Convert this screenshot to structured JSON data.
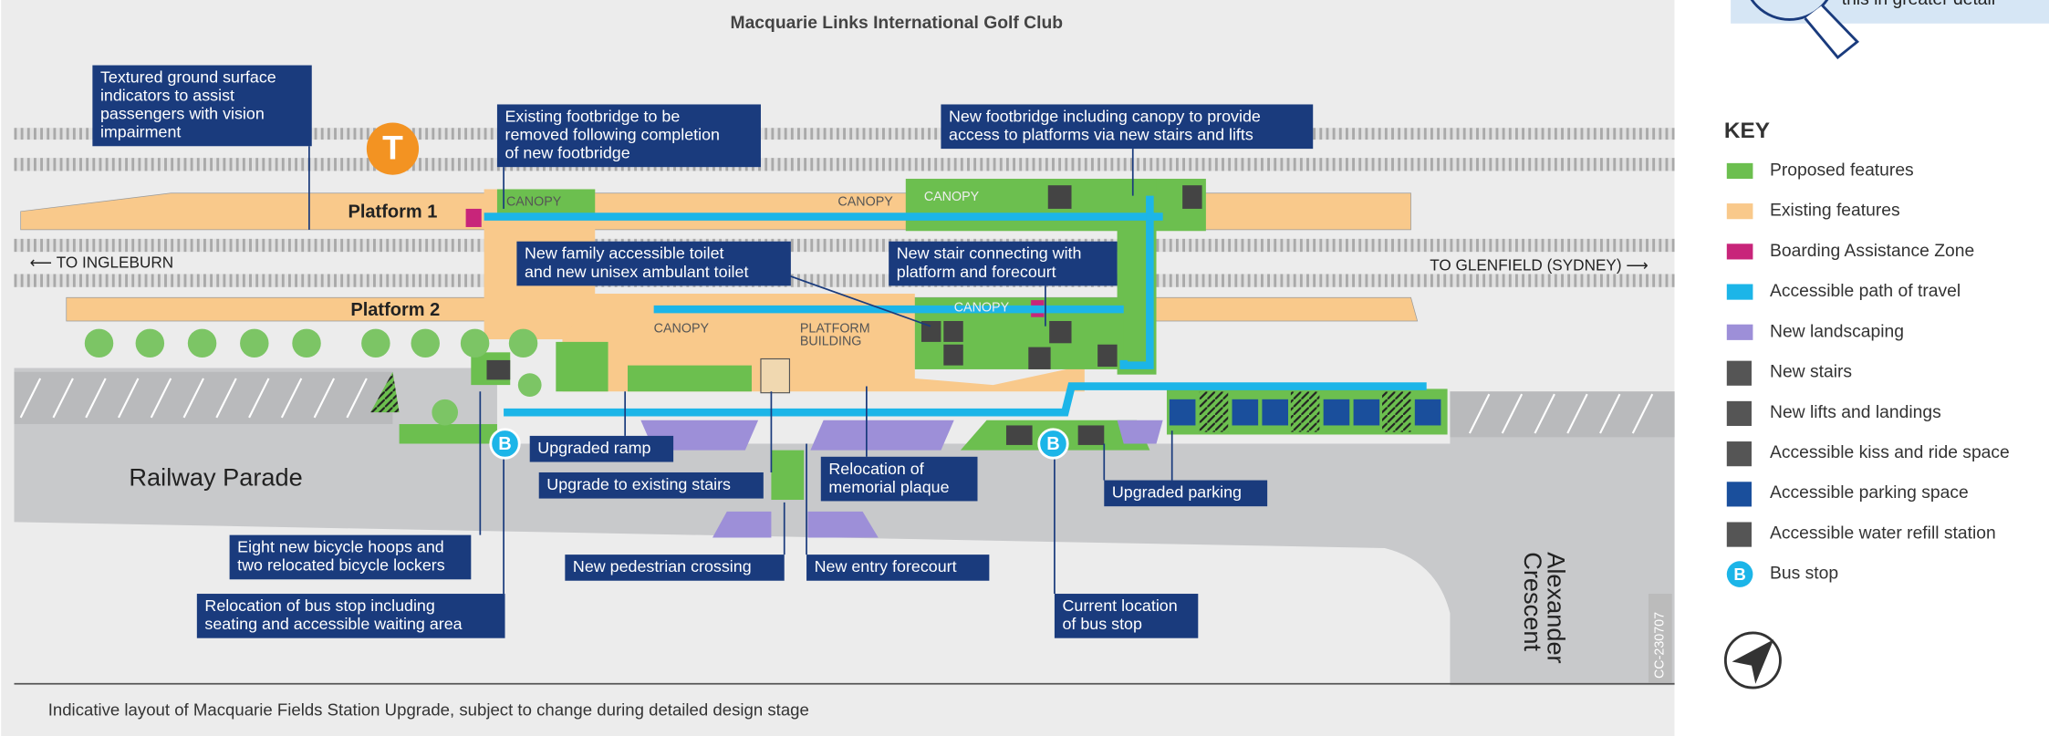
{
  "map": {
    "title": "Macquarie Links International Golf Club",
    "train_letter": "T",
    "bus_stop_letter": "B",
    "platform_1": "Platform 1",
    "platform_2": "Platform 2",
    "to_ingleburn": "⟵ TO INGLEBURN",
    "to_glenfield": "TO GLENFIELD (SYDNEY) ⟶",
    "railway_parade": "Railway Parade",
    "alexander_crescent": [
      "Alexander",
      "Crescent"
    ],
    "canopy": "CANOPY",
    "platform_building": [
      "PLATFORM",
      "BUILDING"
    ],
    "drawing_code": "CC-230707",
    "callouts": [
      [
        "Textured ground surface",
        "indicators to assist",
        "passengers with vision",
        "impairment"
      ],
      [
        "Existing footbridge to be",
        "removed following completion",
        "of new footbridge"
      ],
      [
        "New footbridge including canopy to provide",
        "access to platforms via new stairs and lifts"
      ],
      [
        "New family accessible toilet",
        "and new unisex ambulant toilet"
      ],
      [
        "New stair connecting with",
        "platform and forecourt"
      ],
      [
        "Upgraded ramp"
      ],
      [
        "Upgrade to existing stairs"
      ],
      [
        "Relocation of",
        "memorial plaque"
      ],
      [
        "Upgraded parking"
      ],
      [
        "Eight new bicycle hoops and",
        "two relocated bicycle lockers"
      ],
      [
        "Relocation of bus stop including",
        "seating and accessible waiting area"
      ],
      [
        "New pedestrian crossing"
      ],
      [
        "New entry forecourt"
      ],
      [
        "Current location",
        "of bus stop"
      ]
    ],
    "caption": "Indicative layout of Macquarie Fields Station Upgrade, subject to change during detailed design stage"
  },
  "corner_note": "this in greater detail",
  "key": {
    "title": "KEY",
    "items": [
      {
        "label": "Proposed features",
        "color": "#6cbf4f"
      },
      {
        "label": "Existing features",
        "color": "#f9c98b"
      },
      {
        "label": "Boarding Assistance Zone",
        "color": "#c8257a"
      },
      {
        "label": "Accessible path of travel",
        "color": "#1cb5e8"
      },
      {
        "label": "New landscaping",
        "color": "#9d8fd8"
      },
      {
        "label": "New stairs",
        "color": "#555555"
      },
      {
        "label": "New lifts and landings",
        "color": "#555555"
      },
      {
        "label": "Accessible kiss and ride space",
        "color": "#555555"
      },
      {
        "label": "Accessible parking space",
        "color": "#1a4f9c"
      },
      {
        "label": "Accessible water refill station",
        "color": "#555555"
      },
      {
        "label": "Bus stop",
        "color": "#1cb5e8"
      }
    ]
  }
}
